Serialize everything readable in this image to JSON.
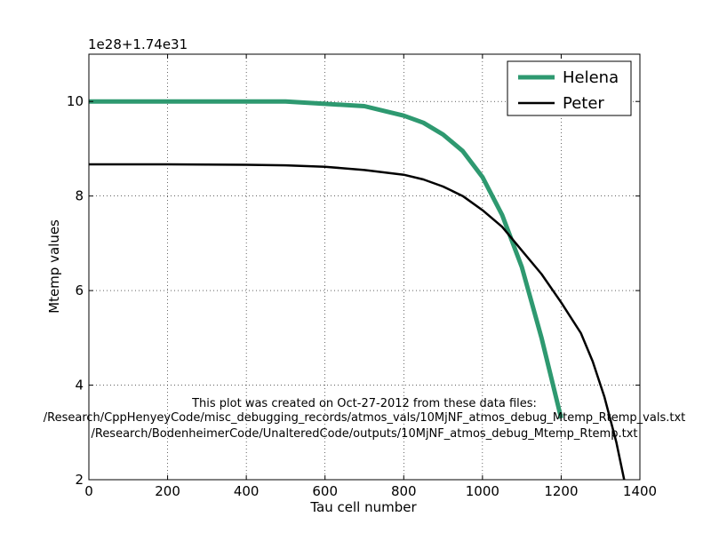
{
  "chart_data": {
    "type": "line",
    "offset_label": "1e28+1.74e31",
    "xlabel": "Tau cell number",
    "ylabel": "Mtemp values",
    "xlim": [
      0,
      1400
    ],
    "ylim": [
      2,
      11
    ],
    "xticks": [
      0,
      200,
      400,
      600,
      800,
      1000,
      1200,
      1400
    ],
    "yticks": [
      2,
      4,
      6,
      8,
      10
    ],
    "grid": true,
    "legend_position": "top-right",
    "series": [
      {
        "name": "Helena",
        "color": "#2e9970",
        "linewidth": "thick",
        "x": [
          0,
          200,
          400,
          500,
          600,
          700,
          800,
          850,
          900,
          950,
          1000,
          1050,
          1100,
          1150,
          1200
        ],
        "y": [
          10.0,
          10.0,
          10.0,
          10.0,
          9.95,
          9.9,
          9.7,
          9.55,
          9.3,
          8.95,
          8.4,
          7.6,
          6.5,
          5.0,
          3.3
        ]
      },
      {
        "name": "Peter",
        "color": "#000000",
        "linewidth": "normal",
        "x": [
          0,
          200,
          400,
          500,
          600,
          700,
          800,
          850,
          900,
          950,
          1000,
          1050,
          1100,
          1150,
          1200,
          1250,
          1280,
          1310,
          1340,
          1360
        ],
        "y": [
          8.67,
          8.67,
          8.66,
          8.65,
          8.62,
          8.55,
          8.45,
          8.35,
          8.2,
          8.0,
          7.7,
          7.35,
          6.85,
          6.35,
          5.75,
          5.1,
          4.5,
          3.75,
          2.8,
          2.0
        ]
      }
    ],
    "annotation": [
      "This plot was created on Oct-27-2012 from these data files:",
      "/Research/CppHenyeyCode/misc_debugging_records/atmos_vals/10MjNF_atmos_debug_Mtemp_Rtemp_vals.txt",
      "/Research/BodenheimerCode/UnalteredCode/outputs/10MjNF_atmos_debug_Mtemp_Rtemp.txt"
    ]
  }
}
